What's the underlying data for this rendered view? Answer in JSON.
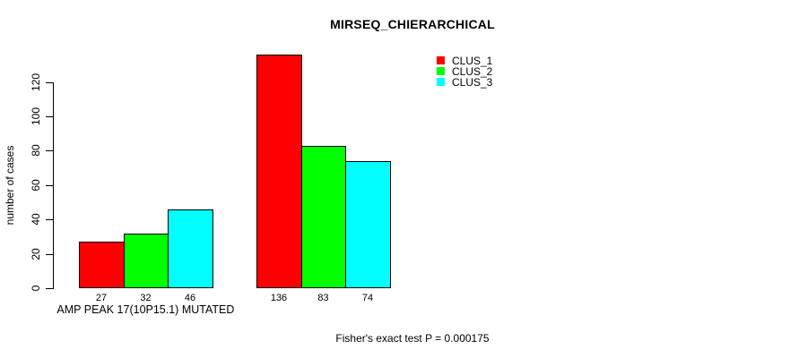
{
  "chart_data": {
    "type": "bar",
    "title": "MIRSEQ_CHIERARCHICAL",
    "ylabel": "number of cases",
    "xlabel": "",
    "categories": [
      "AMP PEAK 17(10P15.1) MUTATED",
      ""
    ],
    "series": [
      {
        "name": "CLUS_1",
        "color": "#ff0000",
        "values": [
          27,
          136
        ]
      },
      {
        "name": "CLUS_2",
        "color": "#00ff00",
        "values": [
          32,
          83
        ]
      },
      {
        "name": "CLUS_3",
        "color": "#00ffff",
        "values": [
          46,
          74
        ]
      }
    ],
    "bar_value_labels": [
      [
        27,
        32,
        46
      ],
      [
        136,
        83,
        74
      ]
    ],
    "yticks": [
      0,
      20,
      40,
      60,
      80,
      100,
      120
    ],
    "ylim": [
      0,
      136
    ],
    "grid": false,
    "legend_position": "top-right",
    "annotation": "Fisher's exact test P = 0.000175"
  },
  "colors": {
    "background": "#ffffff",
    "axis": "#000000",
    "text": "#000000",
    "clus_1": "#ff0000",
    "clus_2": "#00ff00",
    "clus_3": "#00ffff"
  }
}
